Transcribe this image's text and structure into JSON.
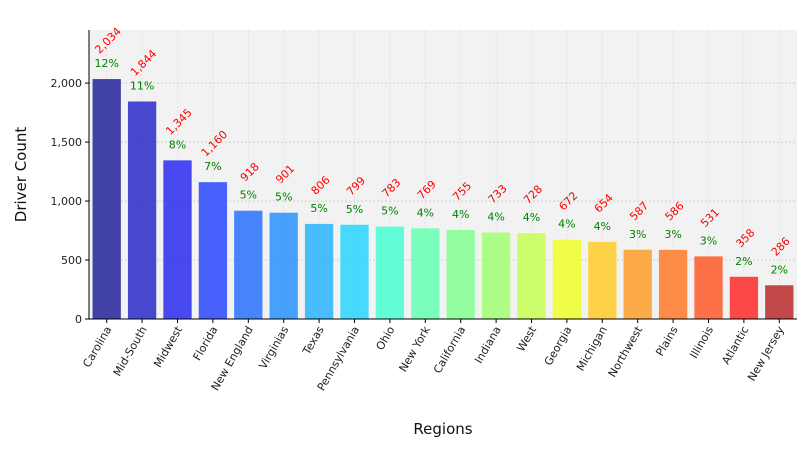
{
  "chart_data": {
    "type": "bar",
    "title": "",
    "xlabel": "Regions",
    "ylabel": "Driver Count",
    "ylim": [
      0,
      2450
    ],
    "yticks": [
      0,
      500,
      1000,
      1500,
      2000
    ],
    "ytick_labels": [
      "0",
      "500",
      "1,000",
      "1,500",
      "2,000"
    ],
    "grid": true,
    "categories": [
      "Carolina",
      "Mid-South",
      "Midwest",
      "Florida",
      "New England",
      "Virginias",
      "Texas",
      "Pennsylvania",
      "Ohio",
      "New York",
      "California",
      "Indiana",
      "West",
      "Georgia",
      "Michigan",
      "Northwest",
      "Plains",
      "Illinois",
      "Atlantic",
      "New Jersey"
    ],
    "values": [
      2034,
      1844,
      1345,
      1160,
      918,
      901,
      806,
      799,
      783,
      769,
      755,
      733,
      728,
      672,
      654,
      587,
      586,
      531,
      358,
      286
    ],
    "value_labels": [
      "2,034",
      "1,844",
      "1,345",
      "1,160",
      "918",
      "901",
      "806",
      "799",
      "783",
      "769",
      "755",
      "733",
      "728",
      "672",
      "654",
      "587",
      "586",
      "531",
      "358",
      "286"
    ],
    "percent_labels": [
      "12%",
      "11%",
      "8%",
      "7%",
      "5%",
      "5%",
      "5%",
      "5%",
      "5%",
      "4%",
      "4%",
      "4%",
      "4%",
      "4%",
      "4%",
      "3%",
      "3%",
      "3%",
      "2%",
      "2%"
    ],
    "colors": [
      "#23239a",
      "#2a2ac8",
      "#2a2af0",
      "#2a48ff",
      "#2a72ff",
      "#2a92ff",
      "#2ab4ff",
      "#2ad6ff",
      "#46ffd2",
      "#66ffb2",
      "#84ff92",
      "#a2ff74",
      "#c6ff54",
      "#eeff2a",
      "#ffcc2a",
      "#ff9e2a",
      "#ff7a2a",
      "#ff5a2a",
      "#ff2a2a",
      "#b82a2a"
    ],
    "value_label_color": "#ff0000",
    "percent_label_color": "#008000",
    "plot_background": "#f2f2f2"
  }
}
